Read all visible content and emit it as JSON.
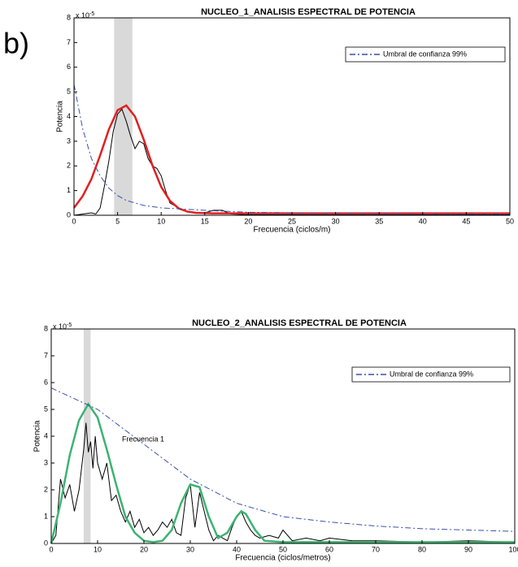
{
  "chart_data": [
    {
      "type": "line",
      "panel_label": "b)",
      "title": "NUCLEO_1_ANALISIS ESPECTRAL DE POTENCIA",
      "x_label": "Frecuencia (ciclos/m)",
      "y_label": "Potencia",
      "y_exponent_base": "x 10",
      "y_exponent_power": "-5",
      "xlim": [
        0,
        50
      ],
      "xticks": [
        0,
        5,
        10,
        15,
        20,
        25,
        30,
        35,
        40,
        45,
        50
      ],
      "ylim": [
        0,
        8
      ],
      "yticks": [
        0,
        1,
        2,
        3,
        4,
        5,
        6,
        7,
        8
      ],
      "band": [
        4.6,
        6.7
      ],
      "band_color": "#d9d9d9",
      "legend": "upper right",
      "series": [
        {
          "color": "#000000",
          "style": "solid",
          "width": 1,
          "x": [
            0,
            1,
            2,
            2.5,
            3,
            3.5,
            4,
            4.5,
            5,
            5.5,
            6,
            6.5,
            7,
            7.5,
            8,
            8.5,
            9,
            9.5,
            10,
            10.5,
            11,
            12,
            13,
            14,
            15,
            16,
            17,
            18,
            20,
            30,
            50
          ],
          "values": [
            0,
            0.05,
            0.1,
            0.05,
            0.3,
            1.2,
            2.2,
            3.4,
            4.1,
            4.3,
            3.8,
            3.2,
            2.7,
            3.0,
            2.9,
            2.3,
            2.0,
            1.9,
            1.6,
            1.0,
            0.5,
            0.3,
            0.15,
            0.1,
            0.1,
            0.2,
            0.2,
            0.05,
            0.02,
            0.02,
            0.02
          ]
        },
        {
          "color": "#e02020",
          "style": "solid",
          "width": 2.5,
          "x": [
            0,
            1,
            2,
            3,
            4,
            5,
            6,
            7,
            8,
            9,
            10,
            11,
            12,
            13,
            14,
            16,
            50
          ],
          "values": [
            0.3,
            0.78,
            1.47,
            2.43,
            3.48,
            4.26,
            4.45,
            4.0,
            3.07,
            2.02,
            1.15,
            0.59,
            0.28,
            0.15,
            0.1,
            0.08,
            0.08
          ]
        },
        {
          "name": "Umbral de confianza 99%",
          "color": "#3a4fa8",
          "style": "dashdot",
          "width": 1,
          "x": [
            0,
            1,
            2,
            3,
            4,
            5,
            6,
            8,
            10,
            15,
            20,
            30,
            50
          ],
          "values": [
            5.3,
            3.5,
            2.3,
            1.6,
            1.1,
            0.8,
            0.6,
            0.4,
            0.3,
            0.2,
            0.12,
            0.08,
            0.05
          ]
        }
      ]
    },
    {
      "type": "line",
      "title": "NUCLEO_2_ANALISIS ESPECTRAL DE POTENCIA",
      "x_label": "Frecuencia (ciclos/metros)",
      "y_label": "Potencia",
      "y_exponent_base": "x 10",
      "y_exponent_power": "-5",
      "annotation": "Frecuencia 1",
      "xlim": [
        0,
        100
      ],
      "xticks": [
        0,
        10,
        20,
        30,
        40,
        50,
        60,
        70,
        80,
        90,
        100
      ],
      "ylim": [
        0,
        8
      ],
      "yticks": [
        0,
        1,
        2,
        3,
        4,
        5,
        6,
        7,
        8
      ],
      "band": [
        7,
        8.5
      ],
      "band_color": "#d9d9d9",
      "legend": "upper right",
      "series": [
        {
          "color": "#000000",
          "style": "solid",
          "width": 1,
          "x": [
            0,
            1,
            2,
            3,
            4,
            5,
            6,
            7,
            7.5,
            8,
            8.5,
            9,
            9.5,
            10,
            11,
            12,
            13,
            14,
            15,
            16,
            17,
            18,
            19,
            20,
            21,
            22,
            23,
            24,
            25,
            26,
            27,
            28,
            29,
            30,
            31,
            32,
            33,
            34,
            35,
            36,
            37,
            38,
            39,
            40,
            41,
            42,
            43,
            44,
            45,
            47,
            49,
            50,
            52,
            55,
            58,
            60,
            65,
            70,
            80,
            90,
            100
          ],
          "values": [
            0,
            0.3,
            2.4,
            1.7,
            2.2,
            1.2,
            2.0,
            3.5,
            4.5,
            3.4,
            3.8,
            2.8,
            4.0,
            3.0,
            2.4,
            3.0,
            1.6,
            1.8,
            1.2,
            0.8,
            1.2,
            0.6,
            0.9,
            0.4,
            0.6,
            0.3,
            0.5,
            0.8,
            0.6,
            0.9,
            0.4,
            0.3,
            1.7,
            2.2,
            0.6,
            1.9,
            1.2,
            0.5,
            0.1,
            0.3,
            0.2,
            0.1,
            0.6,
            1.0,
            1.2,
            0.8,
            0.5,
            0.3,
            0.2,
            0.3,
            0.2,
            0.5,
            0.1,
            0.2,
            0.1,
            0.2,
            0.1,
            0.1,
            0.05,
            0.1,
            0.05
          ]
        },
        {
          "color": "#3cb371",
          "style": "solid",
          "width": 2.5,
          "x": [
            0,
            2,
            4,
            6,
            8,
            10,
            12,
            14,
            16,
            18,
            20,
            22,
            24,
            26,
            28,
            30,
            32,
            34,
            36,
            38,
            40,
            41,
            42,
            44,
            46,
            50,
            100
          ],
          "values": [
            0,
            1.5,
            3.3,
            4.6,
            5.2,
            4.7,
            3.5,
            2.2,
            1.0,
            0.4,
            0.1,
            0.05,
            0.1,
            0.5,
            1.5,
            2.2,
            2.1,
            1.0,
            0.2,
            0.4,
            1.0,
            1.2,
            1.1,
            0.5,
            0.1,
            0.05,
            0.05
          ]
        },
        {
          "name": "Umbral de confianza 99%",
          "color": "#3a4fa8",
          "style": "dashdot",
          "width": 1,
          "x": [
            0,
            10,
            20,
            30,
            40,
            50,
            60,
            70,
            80,
            90,
            100
          ],
          "values": [
            5.8,
            5.0,
            3.7,
            2.4,
            1.5,
            1.0,
            0.8,
            0.65,
            0.55,
            0.5,
            0.45
          ]
        }
      ]
    }
  ]
}
